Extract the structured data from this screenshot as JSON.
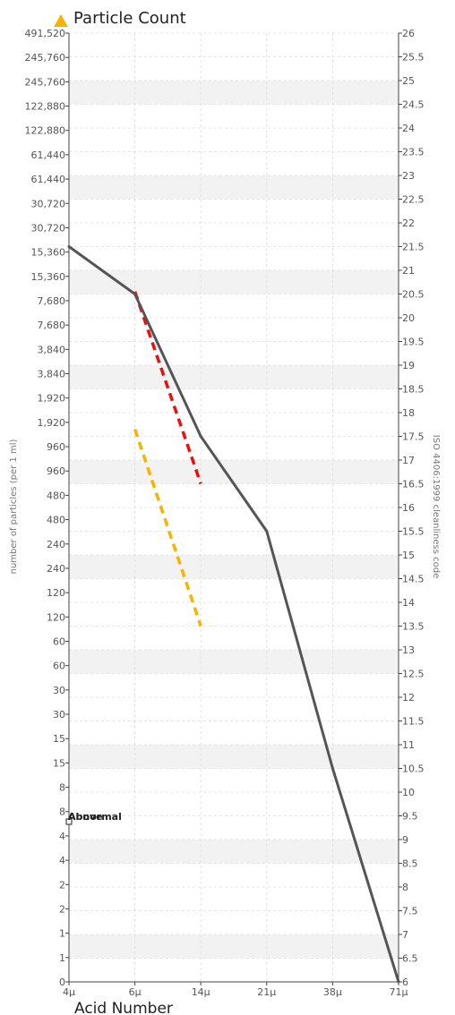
{
  "title": "Particle Count",
  "footer_label": "Acid Number",
  "colors": {
    "title_marker": "#F6B400",
    "series_line": "#555555",
    "red_dash": "#E81010",
    "yellow_dash": "#F6B400",
    "band": "#F2F2F2",
    "grid": "#DDDDDD"
  },
  "chart_data": {
    "type": "line",
    "title": "Particle Count",
    "ylabel_left": "number of particles (per 1 ml)",
    "ylabel_right": "ISO 4406:1999 cleanliness code",
    "x": [
      "4μ",
      "6μ",
      "14μ",
      "21μ",
      "38μ",
      "71μ"
    ],
    "y_left_ticks": [
      "0",
      "1",
      "1",
      "2",
      "2",
      "4",
      "4",
      "8",
      "8",
      "15",
      "15",
      "30",
      "30",
      "60",
      "60",
      "120",
      "120",
      "240",
      "240",
      "480",
      "480",
      "960",
      "960",
      "1,920",
      "1,920",
      "3,840",
      "3,840",
      "7,680",
      "7,680",
      "15,360",
      "15,360",
      "30,720",
      "30,720",
      "61,440",
      "61,440",
      "122,880",
      "122,880",
      "245,760",
      "245,760",
      "491,520"
    ],
    "y_right_ticks": [
      "6",
      "6.5",
      "7",
      "7.5",
      "8",
      "8.5",
      "9",
      "9.5",
      "10",
      "10.5",
      "11",
      "11.5",
      "12",
      "12.5",
      "13",
      "13.5",
      "14",
      "14.5",
      "15",
      "15.5",
      "16",
      "16.5",
      "17",
      "17.5",
      "18",
      "18.5",
      "19",
      "19.5",
      "20",
      "20.5",
      "21",
      "21.5",
      "22",
      "22.5",
      "23",
      "23.5",
      "24",
      "24.5",
      "25",
      "25.5",
      "26"
    ],
    "y_range_code": [
      6,
      26
    ],
    "series": [
      {
        "values": [
          21.5,
          20.5,
          17.5,
          15.5,
          10.5,
          6
        ]
      }
    ],
    "limit_lines": [
      {
        "color": "red",
        "style": "dashed",
        "points": [
          [
            1,
            20.55
          ],
          [
            2,
            16.5
          ]
        ]
      },
      {
        "color": "yellow",
        "style": "dashed",
        "points": [
          [
            1,
            17.65
          ],
          [
            2,
            13.5
          ]
        ]
      }
    ],
    "legend": {
      "placement": "lower-left",
      "entries": [
        "Above",
        "Abnormal"
      ]
    },
    "grid": true
  }
}
